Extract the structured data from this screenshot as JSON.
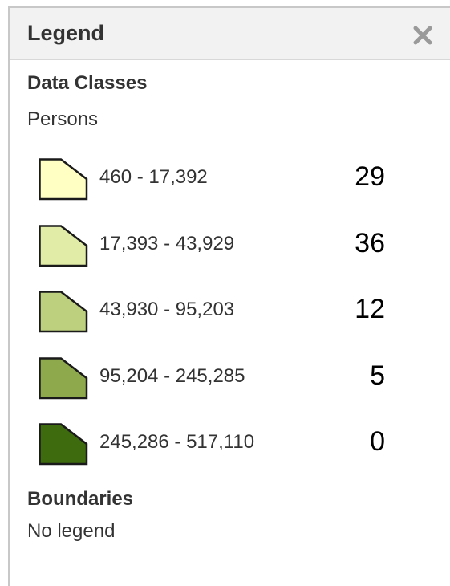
{
  "header": {
    "title": "Legend"
  },
  "sections": [
    {
      "title": "Data Classes",
      "subtitle": "Persons",
      "classes": [
        {
          "label": "460 - 17,392",
          "color": "#ffffc4",
          "count": 29
        },
        {
          "label": "17,393 - 43,929",
          "color": "#e1eca6",
          "count": 36
        },
        {
          "label": "43,930 - 95,203",
          "color": "#bdd07e",
          "count": 12
        },
        {
          "label": "95,204 - 245,285",
          "color": "#8ea94c",
          "count": 5
        },
        {
          "label": "245,286 - 517,110",
          "color": "#3d6b0e",
          "count": 0
        }
      ]
    },
    {
      "title": "Boundaries",
      "subtitle": "No legend"
    }
  ]
}
